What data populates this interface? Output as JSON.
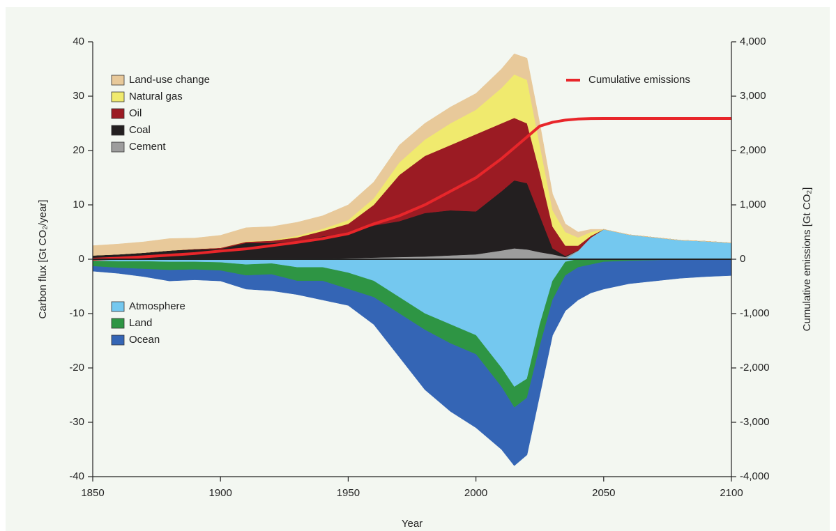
{
  "chart_data": {
    "type": "area",
    "xlabel": "Year",
    "ylabel": "Carbon flux [Gt CO₂/year]",
    "y2label": "Cumulative emissions [Gt CO₂]",
    "x": [
      1850,
      1860,
      1870,
      1880,
      1890,
      1900,
      1910,
      1920,
      1930,
      1940,
      1950,
      1960,
      1970,
      1980,
      1990,
      2000,
      2010,
      2015,
      2020,
      2025,
      2030,
      2035,
      2040,
      2045,
      2050,
      2060,
      2070,
      2080,
      2090,
      2100
    ],
    "xlim": [
      1850,
      2100
    ],
    "xticks": [
      1850,
      1900,
      1950,
      2000,
      2050,
      2100
    ],
    "ylim": [
      -40,
      40
    ],
    "yticks": [
      -40,
      -30,
      -20,
      -10,
      0,
      10,
      20,
      30,
      40
    ],
    "y2lim": [
      -4000,
      4000
    ],
    "y2ticks": [
      {
        "value": -4000,
        "label": "-4,000"
      },
      {
        "value": -3000,
        "label": "-3,000"
      },
      {
        "value": -2000,
        "label": "-2,000"
      },
      {
        "value": -1000,
        "label": "-1,000"
      },
      0,
      {
        "value": 1000,
        "label": "1,000"
      },
      {
        "value": 2000,
        "label": "2,000"
      },
      {
        "value": 3000,
        "label": "3,000"
      },
      {
        "value": 4000,
        "label": "4,000"
      }
    ],
    "series": [
      {
        "name": "Land-use change",
        "color": "#e8c99a",
        "values": [
          1.8,
          1.9,
          2.0,
          2.2,
          2.0,
          2.3,
          2.5,
          2.5,
          2.5,
          2.4,
          2.8,
          3.0,
          3.2,
          3.0,
          3.0,
          3.0,
          3.5,
          3.8,
          4.0,
          4.0,
          3.0,
          1.5,
          1.0,
          0.5,
          0,
          0,
          0,
          0,
          0,
          0
        ]
      },
      {
        "name": "Natural gas",
        "color": "#f0ea6e",
        "values": [
          0,
          0,
          0,
          0,
          0,
          0,
          0.1,
          0.1,
          0.3,
          0.4,
          0.7,
          1.2,
          2.3,
          3.0,
          4.0,
          4.5,
          6.5,
          8.0,
          8.0,
          5.0,
          3.0,
          2.5,
          1.5,
          0.7,
          0,
          0,
          0,
          0,
          0,
          0
        ]
      },
      {
        "name": "Oil",
        "color": "#9b1b23",
        "values": [
          0,
          0,
          0,
          0,
          0.1,
          0.2,
          0.2,
          0.4,
          0.7,
          1.0,
          1.7,
          3.8,
          8.5,
          10.5,
          12.0,
          14.2,
          12.5,
          11.5,
          11.0,
          8.0,
          4.0,
          1.9,
          0.9,
          0.3,
          0,
          0,
          0,
          0,
          0,
          0
        ]
      },
      {
        "name": "Coal",
        "color": "#231f20",
        "values": [
          0.7,
          0.9,
          1.2,
          1.6,
          1.8,
          1.9,
          3.0,
          3.0,
          3.2,
          4.1,
          4.6,
          5.9,
          6.6,
          8.0,
          8.3,
          7.9,
          10.9,
          12.5,
          12.2,
          6.7,
          1.1,
          0.2,
          0,
          0,
          0,
          0,
          0,
          0,
          0,
          0
        ]
      },
      {
        "name": "Cement",
        "color": "#9d9d9d",
        "values": [
          0,
          0,
          0,
          0,
          0,
          0,
          0,
          0,
          0.1,
          0.1,
          0.2,
          0.3,
          0.4,
          0.5,
          0.7,
          0.9,
          1.6,
          2.0,
          1.8,
          1.3,
          0.9,
          0.4,
          0.1,
          0,
          0,
          0,
          0,
          0,
          0,
          0
        ]
      },
      {
        "name": "Atmosphere",
        "color": "#74c8ef",
        "values": [
          -0.3,
          -0.4,
          -0.4,
          -0.5,
          -0.5,
          -0.6,
          -1.0,
          -0.8,
          -1.5,
          -1.5,
          -2.5,
          -4,
          -7,
          -10,
          -12,
          -14,
          -20,
          -23.5,
          -22,
          -12,
          -4,
          -0.5,
          1.5,
          4,
          5.5,
          4.5,
          4,
          3.5,
          3.3,
          3
        ]
      },
      {
        "name": "Land",
        "color": "#2e9544",
        "values": [
          -1.0,
          -1.2,
          -1.4,
          -1.5,
          -1.4,
          -1.5,
          -2,
          -2,
          -2.5,
          -2.5,
          -3,
          -3,
          -3,
          -3,
          -3.5,
          -3.5,
          -3.5,
          -3.8,
          -3.5,
          -4,
          -3.5,
          -2.5,
          -1.5,
          -1,
          -0.5,
          -0.3,
          -0.2,
          -0.1,
          -0.1,
          -0.1
        ]
      },
      {
        "name": "Ocean",
        "color": "#3465b5",
        "values": [
          -0.9,
          -1.0,
          -1.4,
          -2.0,
          -1.9,
          -1.9,
          -2.5,
          -3.0,
          -2.5,
          -3.5,
          -3.0,
          -5,
          -8,
          -11,
          -12.5,
          -13.5,
          -11.5,
          -10.7,
          -10.5,
          -9,
          -6.5,
          -6.5,
          -6.0,
          -5.2,
          -5.0,
          -4.2,
          -3.8,
          -3.4,
          -3.1,
          -2.9
        ]
      },
      {
        "name": "Cumulative emissions",
        "color": "#e8262a",
        "axis": "y2",
        "values": [
          0,
          20,
          45,
          75,
          105,
          150,
          190,
          250,
          310,
          380,
          470,
          650,
          800,
          1000,
          1250,
          1500,
          1850,
          2050,
          2250,
          2450,
          2520,
          2560,
          2580,
          2588,
          2590,
          2590,
          2590,
          2590,
          2590,
          2590
        ]
      }
    ]
  }
}
